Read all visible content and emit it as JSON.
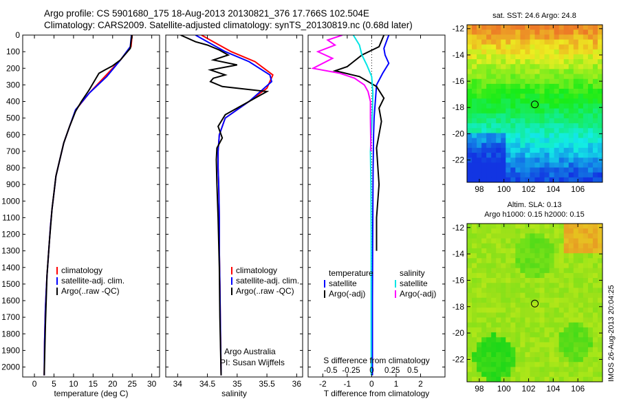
{
  "title": {
    "line1": "Argo profile: CS 5901680_175 18-Aug-2013 20130821_376 17.766S 102.504E",
    "line2": "Climatology: CARS2009. Satellite-adjusted climatology: synTS_20130819.nc (0.68d later)"
  },
  "side_label": "IMOS 26-Aug-2013 20:04:25",
  "colors": {
    "climatology": "#ff0000",
    "satellite": "#0000ff",
    "argo": "#000000",
    "sal_satellite": "#00e5e5",
    "sal_argo": "#ff00ff"
  },
  "chart_data": [
    {
      "type": "line",
      "name": "temperature-profile",
      "xlabel": "temperature (deg C)",
      "xlim": [
        -3,
        32
      ],
      "ylim": [
        2060,
        0
      ],
      "y_inverted": true,
      "xticks": [
        0,
        5,
        10,
        15,
        20,
        25,
        30
      ],
      "yticks": [
        0,
        100,
        200,
        300,
        400,
        500,
        600,
        700,
        800,
        900,
        1000,
        1100,
        1200,
        1300,
        1400,
        1500,
        1600,
        1700,
        1800,
        1900,
        2000
      ],
      "legend": [
        "climatology",
        "satellite-adj. clim.",
        "Argo(..raw -QC)"
      ],
      "series": [
        {
          "key": "climatology",
          "x": [
            25,
            24.7,
            22,
            18,
            14,
            10.6,
            9,
            7.5,
            6.5,
            5.5,
            5,
            4.5,
            4.1,
            3.8,
            3.5,
            3.2,
            3.0,
            2.8,
            2.6,
            2.5
          ],
          "y": [
            0,
            70,
            150,
            250,
            350,
            450,
            550,
            650,
            750,
            850,
            950,
            1050,
            1150,
            1250,
            1350,
            1450,
            1550,
            1650,
            1850,
            2050
          ]
        },
        {
          "key": "satellite",
          "x": [
            24.8,
            24.5,
            22,
            18.5,
            14,
            10.5,
            9,
            7.5,
            6.5,
            5.5,
            5,
            4.5,
            4.1,
            3.8,
            3.5,
            3.2,
            3.0,
            2.8,
            2.6,
            2.5
          ],
          "y": [
            0,
            70,
            150,
            250,
            350,
            450,
            550,
            650,
            750,
            850,
            950,
            1050,
            1150,
            1250,
            1350,
            1450,
            1550,
            1650,
            1850,
            2050
          ]
        },
        {
          "key": "argo",
          "x": [
            24.9,
            24.5,
            22,
            20,
            18,
            16.5,
            15.5,
            14,
            12,
            10.5,
            9,
            7.5,
            6.5,
            5.5,
            4.5,
            3.8,
            3.2,
            2.8,
            2.5
          ],
          "y": [
            0,
            80,
            150,
            185,
            210,
            230,
            270,
            330,
            400,
            460,
            550,
            650,
            750,
            850,
            1050,
            1250,
            1450,
            1750,
            2050
          ]
        }
      ]
    },
    {
      "type": "line",
      "name": "salinity-profile",
      "xlabel": "salinity",
      "xlim": [
        33.8,
        36.1
      ],
      "ylim": [
        2060,
        0
      ],
      "y_inverted": true,
      "xticks": [
        34,
        34.5,
        35,
        35.5,
        36
      ],
      "legend": [
        "climatology",
        "satellite-adj. clim.",
        "Argo(..raw -QC)"
      ],
      "note_line1": "Argo Australia",
      "note_line2": "PI: Susan Wijffels",
      "series": [
        {
          "key": "climatology",
          "x": [
            34.4,
            34.6,
            34.9,
            35.3,
            35.6,
            35.5,
            35.2,
            34.8,
            34.7,
            34.68,
            34.68,
            34.69,
            34.7,
            34.7,
            34.71,
            34.72,
            34.73
          ],
          "y": [
            0,
            40,
            100,
            160,
            240,
            320,
            400,
            500,
            600,
            700,
            800,
            900,
            1100,
            1300,
            1500,
            1800,
            2050
          ]
        },
        {
          "key": "satellite",
          "x": [
            34.3,
            34.5,
            34.8,
            35.2,
            35.55,
            35.58,
            35.2,
            34.8,
            34.7,
            34.68,
            34.68,
            34.69,
            34.7,
            34.7,
            34.71,
            34.72,
            34.73
          ],
          "y": [
            0,
            40,
            100,
            160,
            240,
            280,
            400,
            500,
            600,
            700,
            800,
            900,
            1100,
            1300,
            1500,
            1800,
            2050
          ]
        },
        {
          "key": "argo",
          "x": [
            34.05,
            34.3,
            34.5,
            34.7,
            34.85,
            34.6,
            35.0,
            34.55,
            34.8,
            34.6,
            34.55,
            34.75,
            35.5,
            35.2,
            34.8,
            34.68,
            34.75,
            34.66,
            34.65,
            34.66,
            34.68,
            34.7,
            34.71,
            34.73
          ],
          "y": [
            0,
            40,
            60,
            90,
            120,
            150,
            180,
            210,
            240,
            260,
            280,
            310,
            340,
            400,
            480,
            550,
            620,
            680,
            750,
            900,
            1100,
            1400,
            1700,
            2050
          ]
        }
      ]
    },
    {
      "type": "line",
      "name": "difference-profile",
      "xlabel": "T difference from climatology",
      "xlabel_top": "S difference from climatology",
      "xlim": [
        -2.6,
        3.0
      ],
      "ylim": [
        2060,
        0
      ],
      "y_inverted": true,
      "xticks": [
        -2,
        -1,
        0,
        1,
        2
      ],
      "xticks_top": [
        -0.5,
        -0.25,
        0,
        0.25,
        0.5
      ],
      "legend_left_title": "temperature",
      "legend_right_title": "salinity",
      "legend": [
        "satellite",
        "Argo(-adj)",
        "satellite",
        "Argo(-adj)"
      ],
      "series": [
        {
          "key": "t_satellite",
          "x": [
            0.7,
            0.6,
            0.5,
            0.55,
            0.7,
            0.45,
            0.2,
            0.15,
            0.1,
            0.08,
            0.06,
            0.05,
            0.04,
            0.03,
            0.03,
            0.03
          ],
          "y": [
            0,
            40,
            80,
            120,
            170,
            230,
            300,
            400,
            500,
            600,
            800,
            1000,
            1300,
            1600,
            1900,
            2050
          ]
        },
        {
          "key": "t_argo",
          "x": [
            0.5,
            0.3,
            -0.4,
            -1.0,
            -1.5,
            -0.5,
            0.2,
            0.5,
            0.3,
            0.4,
            0.2,
            0.3,
            0.2,
            0.2,
            0.2
          ],
          "y": [
            0,
            70,
            120,
            190,
            215,
            250,
            310,
            380,
            440,
            520,
            680,
            900,
            1100,
            1200,
            1300
          ]
        },
        {
          "key": "s_satellite",
          "x": [
            -0.75,
            -0.5,
            -0.4,
            -0.2,
            0,
            0.05,
            0.03,
            0.0,
            -0.05,
            -0.03,
            -0.02,
            -0.02
          ],
          "y": [
            0,
            60,
            120,
            180,
            250,
            350,
            450,
            550,
            700,
            900,
            1200,
            2050
          ]
        },
        {
          "key": "s_argo",
          "x": [
            -1.2,
            -1.8,
            -1.5,
            -2.2,
            -1.6,
            -2.4,
            -1.3,
            -0.7,
            -0.3,
            -0.15,
            -0.05,
            -0.05,
            -0.03
          ],
          "y": [
            0,
            30,
            60,
            100,
            140,
            200,
            230,
            260,
            300,
            340,
            400,
            500,
            700
          ]
        }
      ]
    },
    {
      "type": "heatmap",
      "name": "sst-map",
      "title": "sat. SST: 24.6  Argo: 24.8",
      "xlim": [
        97,
        108
      ],
      "ylim": [
        -23.7,
        -11.7
      ],
      "xticks": [
        98,
        100,
        102,
        104,
        106
      ],
      "yticks": [
        -12,
        -14,
        -16,
        -18,
        -20,
        -22
      ],
      "argo_position": [
        102.504,
        -17.766
      ]
    },
    {
      "type": "heatmap",
      "name": "sla-map",
      "title_line1": "Altim. SLA: 0.13",
      "title_line2": "Argo h1000: 0.15  h2000: 0.15",
      "xlim": [
        97,
        108
      ],
      "ylim": [
        -23.7,
        -11.7
      ],
      "xticks": [
        98,
        100,
        102,
        104,
        106
      ],
      "yticks": [
        -12,
        -14,
        -16,
        -18,
        -20,
        -22
      ],
      "argo_position": [
        102.504,
        -17.766
      ]
    }
  ]
}
